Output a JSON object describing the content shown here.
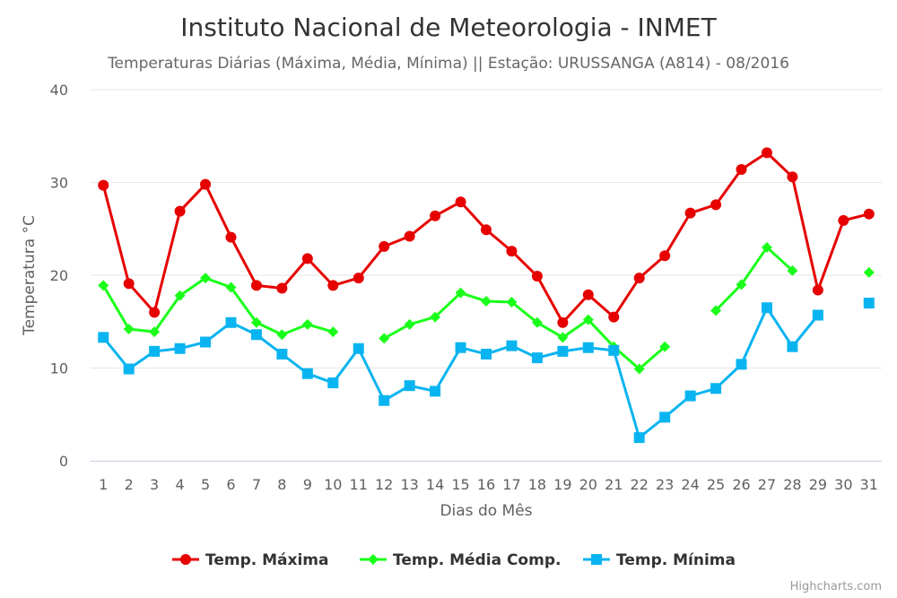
{
  "chart_data": {
    "type": "line",
    "title": "Instituto Nacional de Meteorologia - INMET",
    "subtitle": "Temperaturas Diárias (Máxima, Média, Mínima) || Estação: URUSSANGA (A814) - 08/2016",
    "xlabel": "Dias do Mês",
    "ylabel": "Temperatura °C",
    "ylim": [
      0,
      40
    ],
    "yticks": [
      0,
      10,
      20,
      30,
      40
    ],
    "categories": [
      "1",
      "2",
      "3",
      "4",
      "5",
      "6",
      "7",
      "8",
      "9",
      "10",
      "11",
      "12",
      "13",
      "14",
      "15",
      "16",
      "17",
      "18",
      "19",
      "20",
      "21",
      "22",
      "23",
      "24",
      "25",
      "26",
      "27",
      "28",
      "29",
      "30",
      "31"
    ],
    "grid": true,
    "legend_position": "bottom-center",
    "series": [
      {
        "name": "Temp. Máxima",
        "color": "#e60000",
        "marker": "circle",
        "values": [
          29.7,
          19.1,
          16.0,
          26.9,
          29.8,
          24.1,
          18.9,
          18.6,
          21.8,
          18.9,
          19.7,
          23.1,
          24.2,
          26.4,
          27.9,
          24.9,
          22.6,
          19.9,
          14.9,
          17.9,
          15.5,
          19.7,
          22.1,
          26.7,
          27.6,
          31.4,
          33.2,
          30.6,
          18.4,
          25.9,
          26.6
        ]
      },
      {
        "name": "Temp. Média Comp.",
        "color": "#1aff1a",
        "marker": "diamond",
        "values": [
          18.9,
          14.2,
          13.9,
          17.8,
          19.7,
          18.7,
          14.9,
          13.6,
          14.7,
          13.9,
          null,
          13.2,
          14.7,
          15.5,
          18.1,
          17.2,
          17.1,
          14.9,
          13.3,
          15.2,
          12.3,
          9.9,
          12.3,
          null,
          16.2,
          19.0,
          23.0,
          20.5,
          null,
          null,
          20.3
        ]
      },
      {
        "name": "Temp. Mínima",
        "color": "#0ab4f0",
        "marker": "square",
        "values": [
          13.3,
          9.9,
          11.8,
          12.1,
          12.8,
          14.9,
          13.6,
          11.5,
          9.4,
          8.4,
          12.1,
          6.5,
          8.1,
          7.5,
          12.2,
          11.5,
          12.4,
          11.1,
          11.8,
          12.2,
          11.9,
          2.5,
          4.7,
          7.0,
          7.8,
          10.4,
          16.5,
          12.3,
          15.7,
          null,
          17.0
        ]
      }
    ]
  },
  "credits": "Highcharts.com"
}
